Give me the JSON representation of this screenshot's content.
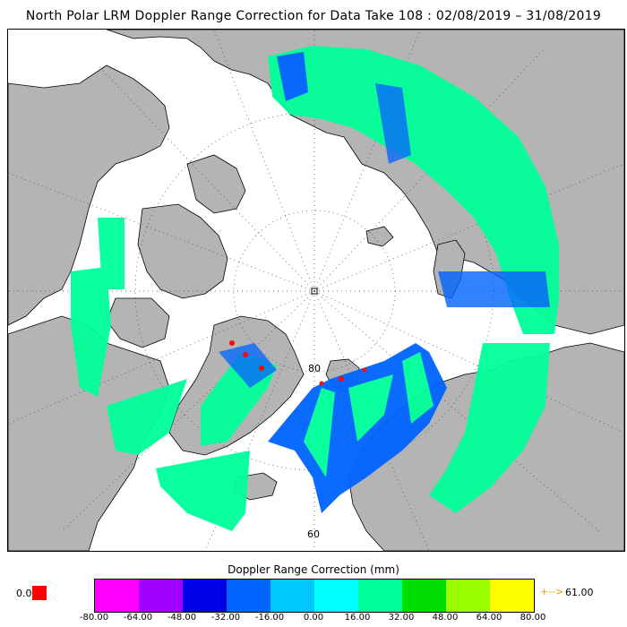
{
  "title": "North Polar LRM Doppler Range Correction for Data Take 108 : 02/08/2019 – 31/08/2019",
  "map": {
    "projection": "north-polar-stereographic",
    "land_color": "#b4b4b4",
    "ocean_color": "#ffffff",
    "graticule": "dotted",
    "latitude_labels": [
      "80",
      "60"
    ]
  },
  "legend": {
    "title": "Doppler Range Correction (mm)",
    "colors": [
      "#ff00ff",
      "#a000ff",
      "#0000e6",
      "#0064ff",
      "#00c8ff",
      "#00ffff",
      "#00ff99",
      "#00dd00",
      "#99ff00",
      "#ffff00",
      "#ff9900"
    ],
    "ticks": [
      "-80.00",
      "-64.00",
      "-48.00",
      "-32.00",
      "-16.00",
      "0.00",
      "16.00",
      "32.00",
      "48.00",
      "64.00",
      "80.00"
    ],
    "under_value": "0.0",
    "under_color": "#ff0000",
    "over_arrow": "+-->",
    "over_value": "61.00"
  }
}
